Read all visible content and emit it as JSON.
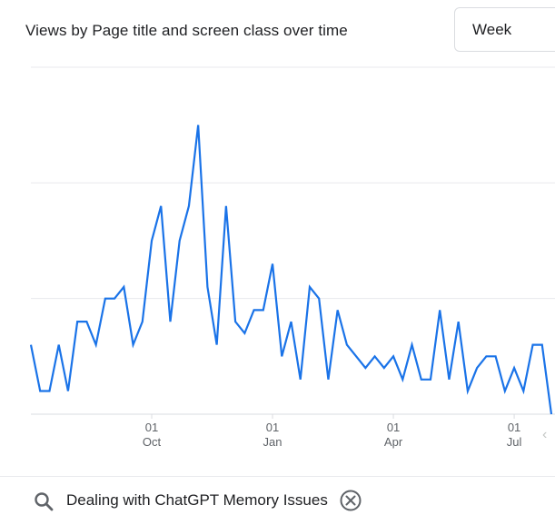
{
  "card": {
    "title": "Views by Page title and screen class over time"
  },
  "period_select": {
    "value": "Week"
  },
  "search": {
    "value": "Dealing with ChatGPT Memory Issues",
    "icon": "search-icon",
    "clear_icon": "close-circle-icon"
  },
  "chart_data": {
    "type": "line",
    "title": "Views by Page title and screen class over time",
    "x_ticks": [
      {
        "day": "01",
        "month": "Oct"
      },
      {
        "day": "01",
        "month": "Jan"
      },
      {
        "day": "01",
        "month": "Apr"
      },
      {
        "day": "01",
        "month": "Jul"
      }
    ],
    "x_tick_index": [
      13,
      26,
      39,
      52
    ],
    "ylim": [
      0,
      300
    ],
    "grid": true,
    "y_tick_labels_visible": false,
    "legend": "none",
    "series": [
      {
        "color": "#1a73e8",
        "values": [
          60,
          20,
          20,
          60,
          20,
          80,
          80,
          60,
          100,
          100,
          110,
          60,
          80,
          150,
          180,
          80,
          150,
          180,
          250,
          110,
          60,
          180,
          80,
          70,
          90,
          90,
          130,
          50,
          80,
          30,
          110,
          100,
          30,
          90,
          60,
          50,
          40,
          50,
          40,
          50,
          30,
          60,
          30,
          30,
          90,
          30,
          80,
          20,
          40,
          50,
          50,
          20,
          40,
          20,
          60,
          60,
          0
        ]
      }
    ]
  }
}
